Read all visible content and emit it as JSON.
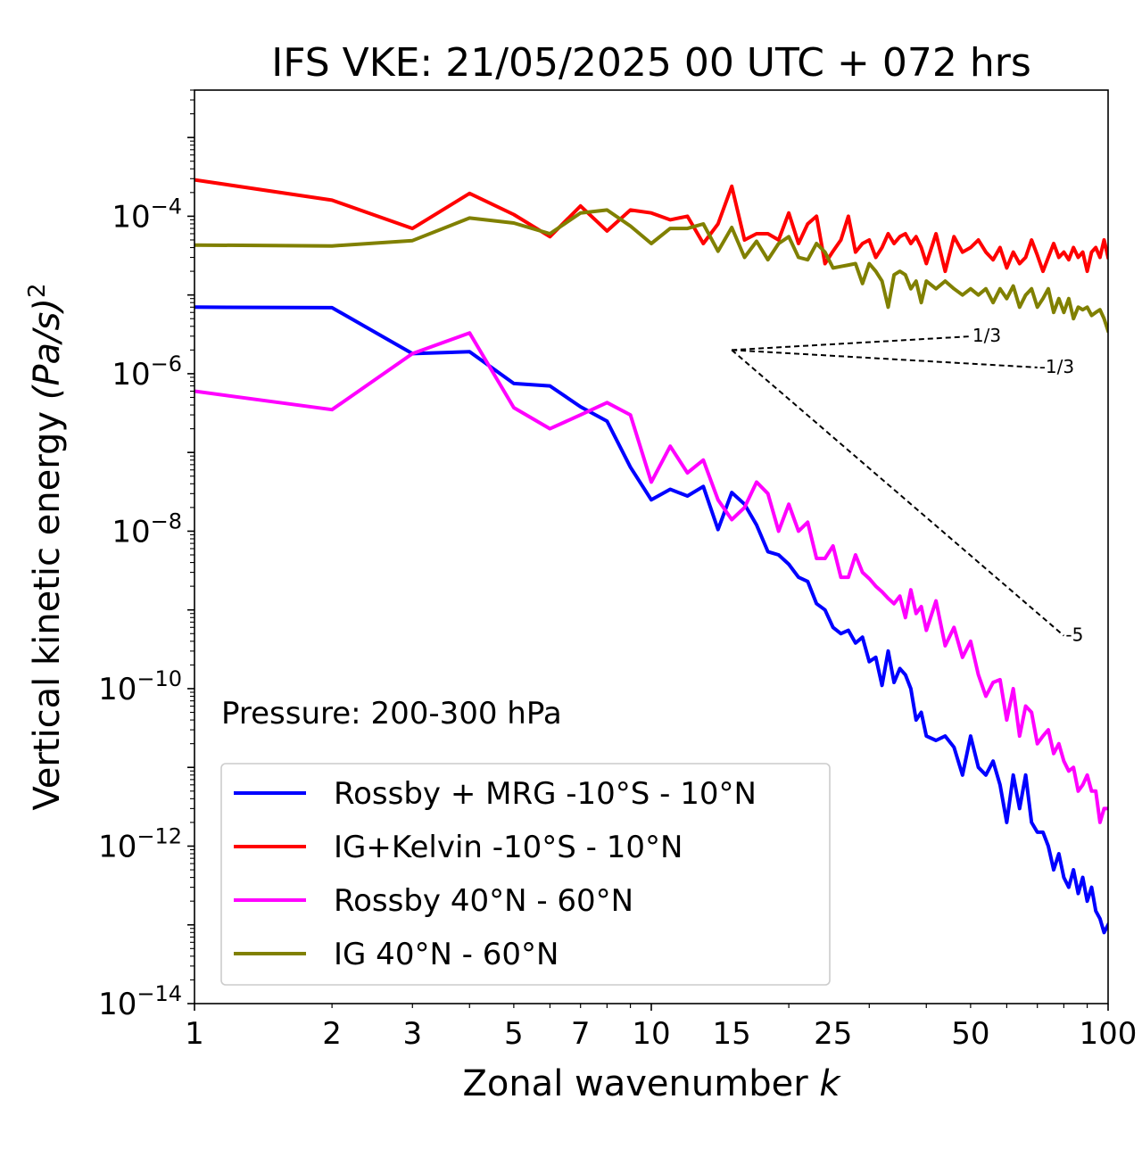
{
  "chart_data": {
    "type": "line",
    "title": "IFS VKE: 21/05/2025 00 UTC + 072 hrs",
    "xlabel_text": "Zonal wavenumber ",
    "xlabel_var": "k",
    "ylabel_text": "Vertical kinetic energy ",
    "ylabel_var": "(Pa/s)",
    "ylabel_power": "2",
    "x_scale": "log",
    "y_scale": "log",
    "xlim": [
      1,
      100
    ],
    "ylim": [
      1e-14,
      0.004
    ],
    "x_ticks": [
      {
        "value": 1,
        "label": "1"
      },
      {
        "value": 2,
        "label": "2"
      },
      {
        "value": 3,
        "label": "3"
      },
      {
        "value": 5,
        "label": "5"
      },
      {
        "value": 7,
        "label": "7"
      },
      {
        "value": 10,
        "label": "10"
      },
      {
        "value": 15,
        "label": "15"
      },
      {
        "value": 25,
        "label": "25"
      },
      {
        "value": 50,
        "label": "50"
      },
      {
        "value": 100,
        "label": "100"
      }
    ],
    "y_ticks": [
      {
        "value": 0.0001,
        "base": "10",
        "exp": "−4"
      },
      {
        "value": 1e-06,
        "base": "10",
        "exp": "−6"
      },
      {
        "value": 1e-08,
        "base": "10",
        "exp": "−8"
      },
      {
        "value": 1e-10,
        "base": "10",
        "exp": "−10"
      },
      {
        "value": 1e-12,
        "base": "10",
        "exp": "−12"
      },
      {
        "value": 1e-14,
        "base": "10",
        "exp": "−14"
      }
    ],
    "grid": false,
    "legend_position": "lower-left",
    "annotation": "Pressure: 200-300 hPa",
    "reference_slopes": [
      {
        "label": "1/3",
        "x": [
          15,
          50
        ],
        "y": [
          2e-06,
          2.98e-06
        ]
      },
      {
        "label": "-1/3",
        "x": [
          15,
          70
        ],
        "y": [
          2e-06,
          1.2e-06
        ]
      },
      {
        "label": "-5",
        "x": [
          15,
          80
        ],
        "y": [
          2e-06,
          4.7e-10
        ]
      }
    ],
    "series": [
      {
        "name": "Rossby + MRG -10°S - 10°N",
        "color": "#0000ff",
        "x": [
          1,
          2,
          3,
          4,
          5,
          6,
          7,
          8,
          9,
          10,
          11,
          12,
          13,
          14,
          15,
          16,
          17,
          18,
          19,
          20,
          21,
          22,
          23,
          24,
          25,
          26,
          27,
          28,
          29,
          30,
          31,
          32,
          33,
          34,
          35,
          36,
          37,
          38,
          39,
          40,
          42,
          44,
          46,
          48,
          50,
          52,
          54,
          56,
          58,
          60,
          62,
          64,
          66,
          68,
          70,
          72,
          74,
          76,
          78,
          80,
          82,
          84,
          86,
          88,
          90,
          92,
          94,
          96,
          98,
          100
        ],
        "y": [
          7e-06,
          6.9e-06,
          1.8e-06,
          1.9e-06,
          7.5e-07,
          7e-07,
          3.8e-07,
          2.5e-07,
          6.5e-08,
          2.5e-08,
          3.4e-08,
          2.8e-08,
          3.7e-08,
          1.05e-08,
          3.1e-08,
          2.2e-08,
          1.2e-08,
          5.5e-09,
          5e-09,
          3.8e-09,
          2.6e-09,
          2.3e-09,
          1.2e-09,
          1e-09,
          6e-10,
          5e-10,
          5.5e-10,
          3.8e-10,
          4.5e-10,
          2.2e-10,
          2.5e-10,
          1.1e-10,
          3e-10,
          1.2e-10,
          1.8e-10,
          1.5e-10,
          1e-10,
          4e-11,
          5e-11,
          2.5e-11,
          2.2e-11,
          2.5e-11,
          1.8e-11,
          8e-12,
          2.5e-11,
          1e-11,
          8e-12,
          1.2e-11,
          6e-12,
          2e-12,
          8e-12,
          3e-12,
          8e-12,
          2e-12,
          1.5e-12,
          1.5e-12,
          1e-12,
          5e-13,
          8e-13,
          4e-13,
          3e-13,
          5e-13,
          2.5e-13,
          4e-13,
          2e-13,
          3e-13,
          1.5e-13,
          1.2e-13,
          8e-14,
          1e-13
        ]
      },
      {
        "name": "IG+Kelvin -10°S - 10°N",
        "color": "#ff0000",
        "x": [
          1,
          2,
          3,
          4,
          5,
          6,
          7,
          8,
          9,
          10,
          11,
          12,
          13,
          14,
          15,
          16,
          17,
          18,
          19,
          20,
          21,
          22,
          23,
          24,
          25,
          26,
          27,
          28,
          29,
          30,
          31,
          32,
          33,
          34,
          35,
          36,
          37,
          38,
          39,
          40,
          42,
          44,
          46,
          48,
          50,
          52,
          54,
          56,
          58,
          60,
          62,
          64,
          66,
          68,
          70,
          72,
          74,
          76,
          78,
          80,
          82,
          84,
          86,
          88,
          90,
          92,
          94,
          96,
          98,
          100
        ],
        "y": [
          0.00029,
          0.00016,
          7e-05,
          0.000195,
          0.000105,
          5.5e-05,
          0.000135,
          6.5e-05,
          0.00012,
          0.00011,
          9e-05,
          0.0001,
          4.5e-05,
          8e-05,
          0.00024,
          5e-05,
          6e-05,
          6e-05,
          5e-05,
          0.00011,
          4.5e-05,
          8e-05,
          0.0001,
          2.5e-05,
          3.6e-05,
          5e-05,
          0.0001,
          3.5e-05,
          4.5e-05,
          5e-05,
          3e-05,
          4e-05,
          6e-05,
          4.5e-05,
          5.5e-05,
          6e-05,
          4.5e-05,
          5.5e-05,
          4e-05,
          2.5e-05,
          6e-05,
          2e-05,
          5.5e-05,
          3.5e-05,
          4e-05,
          5e-05,
          3.5e-05,
          2.8e-05,
          4e-05,
          2.2e-05,
          3.5e-05,
          2.5e-05,
          3e-05,
          5e-05,
          3.2e-05,
          2e-05,
          3e-05,
          4.5e-05,
          3e-05,
          3.5e-05,
          2.8e-05,
          4e-05,
          3e-05,
          3.5e-05,
          2e-05,
          3.5e-05,
          4e-05,
          3e-05,
          5e-05,
          3e-05
        ]
      },
      {
        "name": "Rossby 40°N - 60°N",
        "color": "#ff00ff",
        "x": [
          1,
          2,
          3,
          4,
          5,
          6,
          7,
          8,
          9,
          10,
          11,
          12,
          13,
          14,
          15,
          16,
          17,
          18,
          19,
          20,
          21,
          22,
          23,
          24,
          25,
          26,
          27,
          28,
          29,
          30,
          31,
          32,
          33,
          34,
          35,
          36,
          37,
          38,
          39,
          40,
          42,
          44,
          46,
          48,
          50,
          52,
          54,
          56,
          58,
          60,
          62,
          64,
          66,
          68,
          70,
          72,
          74,
          76,
          78,
          80,
          82,
          84,
          86,
          88,
          90,
          92,
          94,
          96,
          98,
          100
        ],
        "y": [
          6e-07,
          3.5e-07,
          1.8e-06,
          3.3e-06,
          3.7e-07,
          2e-07,
          3e-07,
          4.3e-07,
          3e-07,
          4.2e-08,
          1.2e-07,
          5.5e-08,
          8e-08,
          2.5e-08,
          1.4e-08,
          2e-08,
          4.2e-08,
          3e-08,
          1e-08,
          2.2e-08,
          1e-08,
          1.3e-08,
          4.5e-09,
          4.5e-09,
          6.5e-09,
          2.6e-09,
          2.6e-09,
          5e-09,
          3e-09,
          2.5e-09,
          2e-09,
          1.7e-09,
          1.4e-09,
          1.2e-09,
          1.5e-09,
          8e-10,
          1.8e-09,
          9e-10,
          1.1e-09,
          5.5e-10,
          1.3e-09,
          3.5e-10,
          6e-10,
          2.5e-10,
          4e-10,
          1.5e-10,
          8e-11,
          1.2e-10,
          1.3e-10,
          4e-11,
          1e-10,
          2.5e-11,
          6e-11,
          5e-11,
          2e-11,
          2.5e-11,
          3e-11,
          1.5e-11,
          2e-11,
          1.2e-11,
          9e-12,
          1e-11,
          5e-12,
          6e-12,
          8e-12,
          5e-12,
          5e-12,
          2e-12,
          3e-12,
          3e-12
        ]
      },
      {
        "name": "IG 40°N - 60°N",
        "color": "#808000",
        "x": [
          1,
          2,
          3,
          4,
          5,
          6,
          7,
          8,
          9,
          10,
          11,
          12,
          13,
          14,
          15,
          16,
          17,
          18,
          19,
          20,
          21,
          22,
          23,
          24,
          25,
          26,
          27,
          28,
          29,
          30,
          31,
          32,
          33,
          34,
          35,
          36,
          37,
          38,
          39,
          40,
          42,
          44,
          46,
          48,
          50,
          52,
          54,
          56,
          58,
          60,
          62,
          64,
          66,
          68,
          70,
          72,
          74,
          76,
          78,
          80,
          82,
          84,
          86,
          88,
          90,
          92,
          94,
          96,
          98,
          100
        ],
        "y": [
          4.3e-05,
          4.2e-05,
          4.9e-05,
          9.5e-05,
          8.2e-05,
          6e-05,
          0.00011,
          0.00012,
          7.5e-05,
          4.5e-05,
          7e-05,
          7e-05,
          8e-05,
          3.6e-05,
          7.2e-05,
          3e-05,
          4.8e-05,
          2.8e-05,
          4.5e-05,
          5.5e-05,
          3e-05,
          2.8e-05,
          4.5e-05,
          3.5e-05,
          2.2e-05,
          2.3e-05,
          2.4e-05,
          2.5e-05,
          1.4e-05,
          2.5e-05,
          2e-05,
          1.5e-05,
          7e-06,
          1.8e-05,
          2e-05,
          1.8e-05,
          1.2e-05,
          1.5e-05,
          8e-06,
          1.5e-05,
          1.2e-05,
          1.5e-05,
          1.2e-05,
          1e-05,
          1.2e-05,
          1e-05,
          1.2e-05,
          8e-06,
          1.2e-05,
          9e-06,
          1.3e-05,
          7e-06,
          1e-05,
          1.2e-05,
          7e-06,
          9e-06,
          1.2e-05,
          6e-06,
          9e-06,
          6e-06,
          9e-06,
          5e-06,
          7e-06,
          6.5e-06,
          7e-06,
          5.5e-06,
          6e-06,
          6.5e-06,
          5e-06,
          3.5e-06
        ]
      }
    ]
  }
}
